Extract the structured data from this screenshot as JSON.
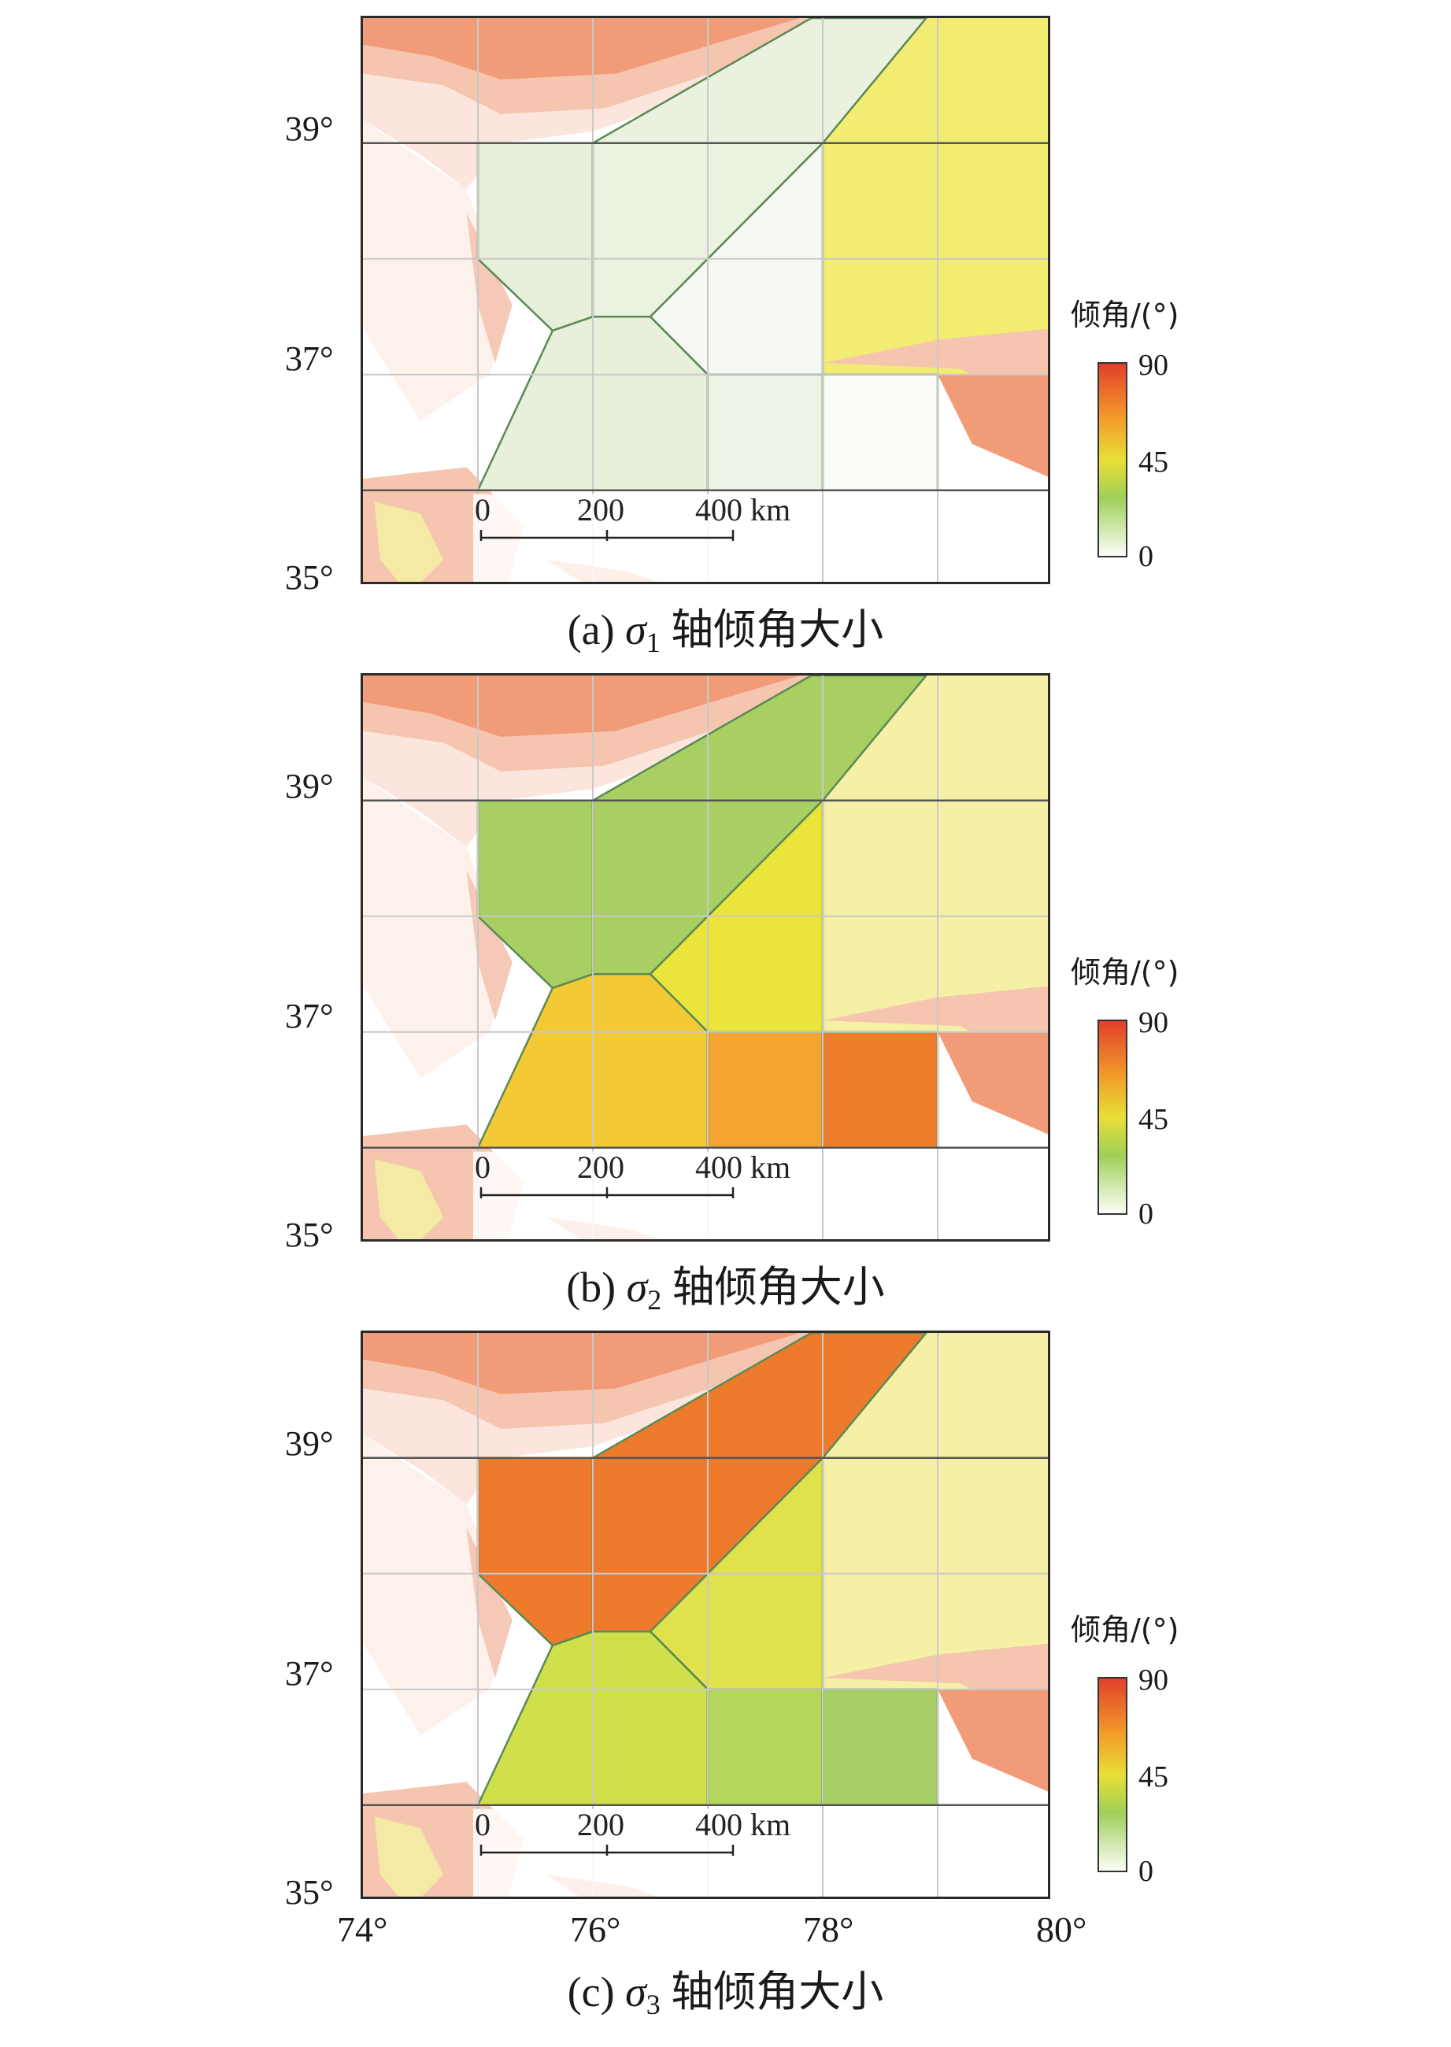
{
  "panels": [
    {
      "id": "a",
      "legend_title": "倾角/(°)",
      "colorbar_ticks": [
        "90",
        "45",
        "0"
      ],
      "caption": {
        "prefix": "(a)",
        "symbol": "σ",
        "subscript": "1",
        "suffix": "轴倾角大小"
      },
      "region_colors": {
        "northeast_triangle": "#eaf1de",
        "nw_block": "#e6efd9",
        "center_block": "#eaf2e0",
        "east_triangle": "#f6f8f3",
        "south_hex": "#e8efdb",
        "se1": "#eef3e8",
        "se2": "#fbfcf8",
        "east_background": "#f3ec72"
      }
    },
    {
      "id": "b",
      "legend_title": "倾角/(°)",
      "colorbar_ticks": [
        "90",
        "45",
        "0"
      ],
      "caption": {
        "prefix": "(b)",
        "symbol": "σ",
        "subscript": "2",
        "suffix": "轴倾角大小"
      },
      "region_colors": {
        "northeast_triangle": "#a9cf63",
        "nw_block": "#a9cf63",
        "center_block": "#a9cf63",
        "east_triangle": "#ebe43a",
        "south_hex": "#f3c935",
        "se1": "#f4a531",
        "se2": "#ee7d2c",
        "east_background": "#f6f0a6"
      }
    },
    {
      "id": "c",
      "legend_title": "倾角/(°)",
      "colorbar_ticks": [
        "90",
        "45",
        "0"
      ],
      "caption": {
        "prefix": "(c)",
        "symbol": "σ",
        "subscript": "3",
        "suffix": "轴倾角大小"
      },
      "region_colors": {
        "northeast_triangle": "#ee7b2c",
        "nw_block": "#ee7b2c",
        "center_block": "#ee7b2c",
        "east_triangle": "#dfe24a",
        "south_hex": "#cfe04a",
        "se1": "#b3d559",
        "se2": "#a8cf65",
        "east_background": "#f6f0a6"
      }
    }
  ],
  "latitude_labels": [
    "39°",
    "37°",
    "35°"
  ],
  "longitude_labels": [
    "74°",
    "76°",
    "78°",
    "80°"
  ],
  "scale_bar": {
    "labels": [
      "0",
      "200",
      "400 km"
    ]
  },
  "terrain_colors": {
    "high": "#f29b78",
    "mid": "#f6c5b0",
    "low": "#fbe5dc",
    "yellow": "#f5e9a6"
  }
}
